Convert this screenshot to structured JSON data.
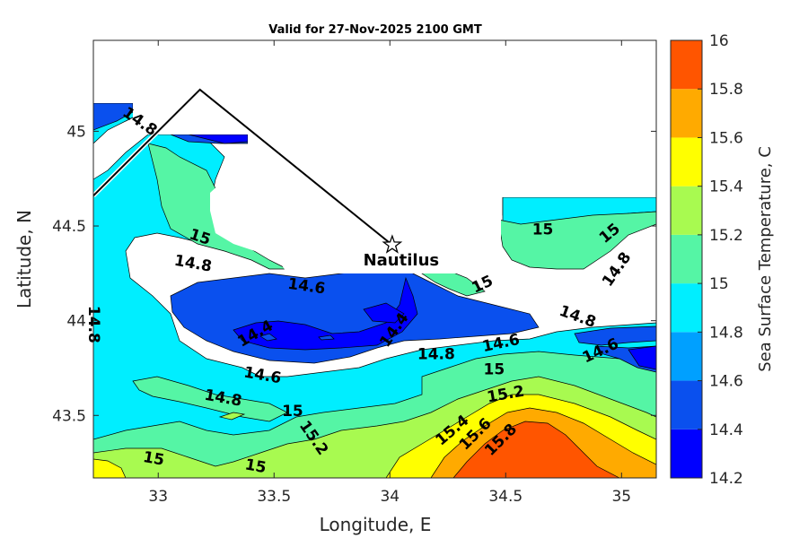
{
  "chart_data": {
    "type": "contour",
    "title": "Valid for 27-Nov-2025 2100 GMT",
    "xlabel": "Longitude, E",
    "ylabel": "Latitude, N",
    "xlim": [
      32.72,
      35.15
    ],
    "ylim": [
      43.17,
      45.48
    ],
    "xticks": [
      33,
      33.5,
      34,
      34.5,
      35
    ],
    "xtick_labels": [
      "33",
      "33.5",
      "34",
      "34.5",
      "35"
    ],
    "yticks": [
      43.5,
      44,
      44.5,
      45
    ],
    "ytick_labels": [
      "43.5",
      "44",
      "44.5",
      "45"
    ],
    "colorbar": {
      "label": "Sea Surface Temperature, C",
      "levels": [
        14.2,
        14.4,
        14.6,
        14.8,
        15,
        15.2,
        15.4,
        15.6,
        15.8,
        16
      ],
      "tick_labels": [
        "14.2",
        "14.4",
        "14.6",
        "14.8",
        "15",
        "15.2",
        "15.4",
        "15.6",
        "15.8",
        "16"
      ],
      "colors": [
        "#0000ff",
        "#0a50ee",
        "#00a0ff",
        "#00eeff",
        "#55f5a5",
        "#a8fa50",
        "#ffff00",
        "#ffaa00",
        "#ff5500"
      ]
    },
    "marker": {
      "name": "Nautilus",
      "lon": 34.01,
      "lat": 44.4
    },
    "track": [
      [
        32.72,
        44.66
      ],
      [
        33.18,
        45.22
      ],
      [
        34.01,
        44.4
      ]
    ],
    "contour_labels": [
      {
        "text": "14.8",
        "lon": 32.92,
        "lat": 45.05,
        "rot": 35
      },
      {
        "text": "15",
        "lon": 33.18,
        "lat": 44.44,
        "rot": 18
      },
      {
        "text": "14.8",
        "lon": 33.15,
        "lat": 44.3,
        "rot": 10
      },
      {
        "text": "14.6",
        "lon": 33.64,
        "lat": 44.18,
        "rot": 8
      },
      {
        "text": "14.4",
        "lon": 33.42,
        "lat": 43.93,
        "rot": -30
      },
      {
        "text": "14.4",
        "lon": 34.02,
        "lat": 43.95,
        "rot": -55
      },
      {
        "text": "14.8",
        "lon": 32.72,
        "lat": 43.98,
        "rot": 90
      },
      {
        "text": "14.6",
        "lon": 33.45,
        "lat": 43.71,
        "rot": 10
      },
      {
        "text": "14.8",
        "lon": 33.28,
        "lat": 43.59,
        "rot": 10
      },
      {
        "text": "15",
        "lon": 33.58,
        "lat": 43.52,
        "rot": 0
      },
      {
        "text": "15.2",
        "lon": 33.67,
        "lat": 43.38,
        "rot": 55
      },
      {
        "text": "15",
        "lon": 32.98,
        "lat": 43.27,
        "rot": 10
      },
      {
        "text": "15",
        "lon": 33.42,
        "lat": 43.23,
        "rot": 10
      },
      {
        "text": "14.8",
        "lon": 34.2,
        "lat": 43.82,
        "rot": 0
      },
      {
        "text": "14.6",
        "lon": 34.48,
        "lat": 43.88,
        "rot": -12
      },
      {
        "text": "15",
        "lon": 34.45,
        "lat": 43.74,
        "rot": 0
      },
      {
        "text": "15.2",
        "lon": 34.5,
        "lat": 43.61,
        "rot": -10
      },
      {
        "text": "15.4",
        "lon": 34.27,
        "lat": 43.42,
        "rot": -40
      },
      {
        "text": "15.6",
        "lon": 34.37,
        "lat": 43.4,
        "rot": -45
      },
      {
        "text": "15.8",
        "lon": 34.48,
        "lat": 43.37,
        "rot": -45
      },
      {
        "text": "15",
        "lon": 34.4,
        "lat": 44.19,
        "rot": -25
      },
      {
        "text": "15",
        "lon": 34.66,
        "lat": 44.48,
        "rot": 0
      },
      {
        "text": "15",
        "lon": 34.95,
        "lat": 44.46,
        "rot": -40
      },
      {
        "text": "14.8",
        "lon": 34.98,
        "lat": 44.27,
        "rot": -55
      },
      {
        "text": "14.8",
        "lon": 34.81,
        "lat": 44.02,
        "rot": 20
      },
      {
        "text": "14.6",
        "lon": 34.91,
        "lat": 43.84,
        "rot": -25
      }
    ]
  }
}
